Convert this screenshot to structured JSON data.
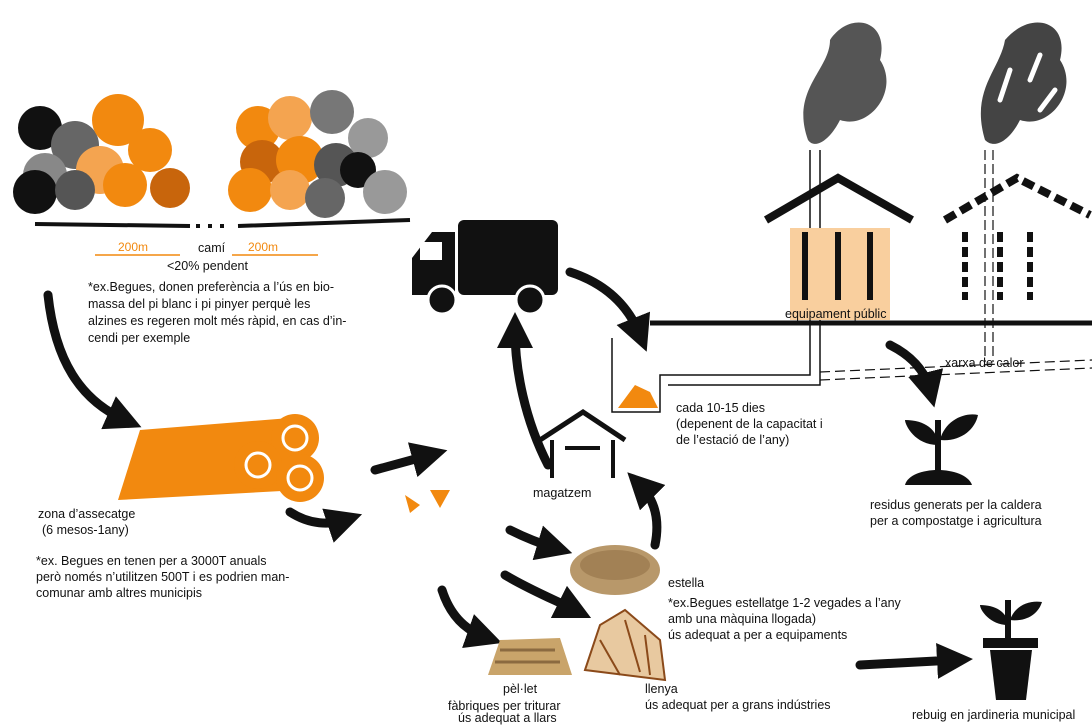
{
  "forest": {
    "distance_left": "200m",
    "distance_right": "200m",
    "path": "camí",
    "slope": "<20% pendent",
    "note": [
      "*ex.Begues, donen preferència a l’ús en bio-",
      "massa del pi blanc i pi pinyer perquè les",
      "alzines es regeren molt més ràpid, en cas d’in-",
      "cendi per exemple"
    ]
  },
  "drying": {
    "label": [
      "zona d’assecatge",
      "(6 mesos-1any)"
    ],
    "note": [
      "*ex. Begues en tenen per a 3000T anuals",
      "però només n’utilitzen 500T i es podrien man-",
      "comunar amb altres municipis"
    ]
  },
  "storage": {
    "label": "magatzem"
  },
  "delivery": {
    "label": [
      "cada 10-15 dies",
      "(depenent de la capacitat i",
      "de l’estació de l’any)"
    ]
  },
  "facility": {
    "label": "equipament públic",
    "network": "xarxa de calor"
  },
  "residue": {
    "label": [
      "residus generats per la caldera",
      "per a compostatge i agricultura"
    ]
  },
  "chips": {
    "label": "estella",
    "note": [
      "*ex.Begues estellatge 1-2 vegades a l’any",
      "amb una màquina llogada)",
      "ús adequat a per a equipaments"
    ]
  },
  "pellet": {
    "label": [
      "pèl·let",
      "fàbriques per triturar",
      "ús adequat a llars"
    ]
  },
  "firewood": {
    "label": [
      "llenya",
      "ús adequat per a grans indústries"
    ]
  },
  "waste": {
    "label": "rebuig en jardineria municipal"
  }
}
